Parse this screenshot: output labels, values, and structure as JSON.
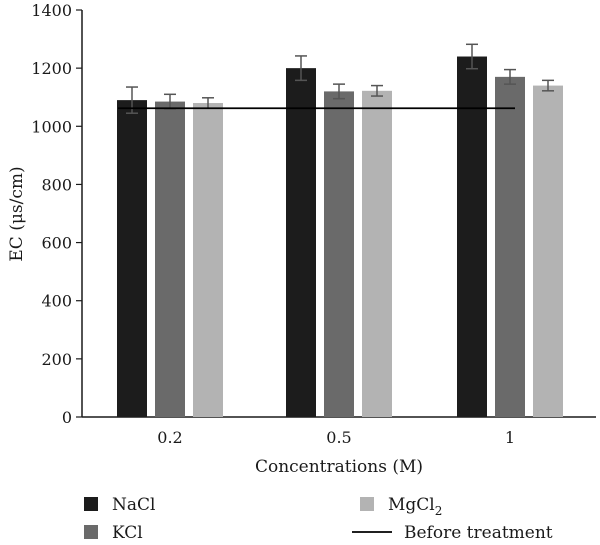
{
  "chart_data": {
    "type": "bar",
    "title": "",
    "xlabel": "Concentrations (M)",
    "ylabel": "EC (μs/cm)",
    "ylim": [
      0,
      1400
    ],
    "yticks": [
      "0",
      "200",
      "400",
      "600",
      "800",
      "1000",
      "1200",
      "1400"
    ],
    "categories": [
      "0.2",
      "0.5",
      "1"
    ],
    "series": [
      {
        "name": "NaCl",
        "color": "#1c1c1c",
        "values": [
          1090,
          1200,
          1240
        ],
        "errors": [
          45,
          42,
          42
        ]
      },
      {
        "name": "KCl",
        "color": "#6a6a6a",
        "values": [
          1085,
          1120,
          1170
        ],
        "errors": [
          25,
          25,
          25
        ]
      },
      {
        "name": "MgCl2",
        "color": "#b3b3b3",
        "values": [
          1080,
          1122,
          1140
        ],
        "errors": [
          18,
          18,
          18
        ]
      }
    ],
    "reference_line": {
      "name": "Before treatment",
      "value": 1062,
      "color": "#000000"
    },
    "legend": {
      "placement": "bottom",
      "items": [
        {
          "label": "NaCl",
          "kind": "box",
          "color": "#1c1c1c"
        },
        {
          "label": "MgCl",
          "subscript": "2",
          "kind": "box",
          "color": "#b3b3b3"
        },
        {
          "label": "KCl",
          "kind": "box",
          "color": "#6a6a6a"
        },
        {
          "label": "Before treatment",
          "kind": "line",
          "color": "#000000"
        }
      ]
    },
    "grid": false
  }
}
